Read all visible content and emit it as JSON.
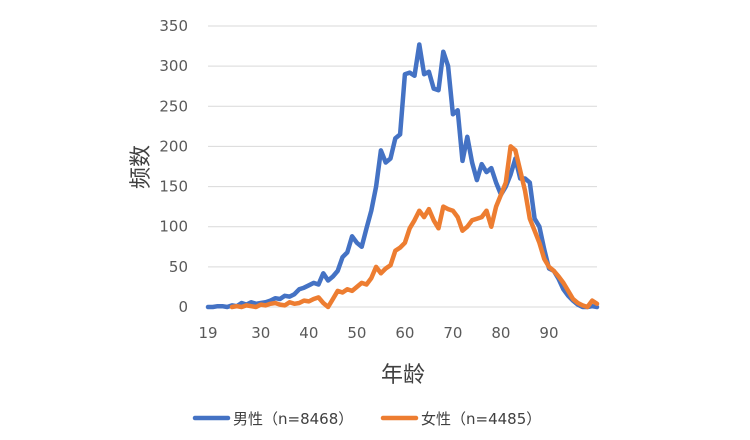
{
  "chart_data": {
    "type": "line",
    "title": "",
    "xlabel": "年龄",
    "ylabel": "频数",
    "xlim": [
      19,
      100
    ],
    "ylim": [
      0,
      350
    ],
    "x_ticks": [
      "19",
      "30",
      "40",
      "50",
      "60",
      "70",
      "80",
      "90"
    ],
    "y_ticks": [
      "0",
      "50",
      "100",
      "150",
      "200",
      "250",
      "300",
      "350"
    ],
    "grid": "horizontal",
    "legend_position": "bottom",
    "series": [
      {
        "name": "男性（n=8468）",
        "color": "#4472c4",
        "points": [
          [
            19,
            0
          ],
          [
            20,
            0
          ],
          [
            21,
            1
          ],
          [
            22,
            1
          ],
          [
            23,
            0
          ],
          [
            24,
            2
          ],
          [
            25,
            1
          ],
          [
            26,
            5
          ],
          [
            27,
            3
          ],
          [
            28,
            6
          ],
          [
            29,
            4
          ],
          [
            30,
            5
          ],
          [
            31,
            6
          ],
          [
            32,
            8
          ],
          [
            33,
            11
          ],
          [
            34,
            10
          ],
          [
            35,
            14
          ],
          [
            36,
            13
          ],
          [
            37,
            16
          ],
          [
            38,
            22
          ],
          [
            39,
            24
          ],
          [
            40,
            27
          ],
          [
            41,
            30
          ],
          [
            42,
            28
          ],
          [
            43,
            42
          ],
          [
            44,
            33
          ],
          [
            45,
            38
          ],
          [
            46,
            45
          ],
          [
            47,
            62
          ],
          [
            48,
            68
          ],
          [
            49,
            88
          ],
          [
            50,
            80
          ],
          [
            51,
            75
          ],
          [
            52,
            98
          ],
          [
            53,
            120
          ],
          [
            54,
            150
          ],
          [
            55,
            195
          ],
          [
            56,
            180
          ],
          [
            57,
            185
          ],
          [
            58,
            210
          ],
          [
            59,
            215
          ],
          [
            60,
            290
          ],
          [
            61,
            292
          ],
          [
            62,
            288
          ],
          [
            63,
            327
          ],
          [
            64,
            290
          ],
          [
            65,
            293
          ],
          [
            66,
            272
          ],
          [
            67,
            270
          ],
          [
            68,
            318
          ],
          [
            69,
            300
          ],
          [
            70,
            240
          ],
          [
            71,
            245
          ],
          [
            72,
            182
          ],
          [
            73,
            212
          ],
          [
            74,
            180
          ],
          [
            75,
            158
          ],
          [
            76,
            178
          ],
          [
            77,
            168
          ],
          [
            78,
            173
          ],
          [
            79,
            155
          ],
          [
            80,
            140
          ],
          [
            81,
            150
          ],
          [
            82,
            165
          ],
          [
            83,
            185
          ],
          [
            84,
            160
          ],
          [
            85,
            160
          ],
          [
            86,
            155
          ],
          [
            87,
            110
          ],
          [
            88,
            100
          ],
          [
            89,
            72
          ],
          [
            90,
            48
          ],
          [
            91,
            45
          ],
          [
            92,
            35
          ],
          [
            93,
            22
          ],
          [
            94,
            14
          ],
          [
            95,
            8
          ],
          [
            96,
            3
          ],
          [
            97,
            0
          ],
          [
            98,
            0
          ],
          [
            99,
            1
          ],
          [
            100,
            0
          ]
        ]
      },
      {
        "name": "女性（n=4485）",
        "color": "#ed7d31",
        "points": [
          [
            24,
            0
          ],
          [
            25,
            1
          ],
          [
            26,
            0
          ],
          [
            27,
            2
          ],
          [
            28,
            1
          ],
          [
            29,
            0
          ],
          [
            30,
            3
          ],
          [
            31,
            2
          ],
          [
            32,
            4
          ],
          [
            33,
            5
          ],
          [
            34,
            3
          ],
          [
            35,
            2
          ],
          [
            36,
            6
          ],
          [
            37,
            4
          ],
          [
            38,
            5
          ],
          [
            39,
            8
          ],
          [
            40,
            7
          ],
          [
            41,
            10
          ],
          [
            42,
            12
          ],
          [
            43,
            5
          ],
          [
            44,
            0
          ],
          [
            45,
            10
          ],
          [
            46,
            20
          ],
          [
            47,
            18
          ],
          [
            48,
            22
          ],
          [
            49,
            20
          ],
          [
            50,
            25
          ],
          [
            51,
            30
          ],
          [
            52,
            28
          ],
          [
            53,
            36
          ],
          [
            54,
            50
          ],
          [
            55,
            42
          ],
          [
            56,
            48
          ],
          [
            57,
            52
          ],
          [
            58,
            70
          ],
          [
            59,
            74
          ],
          [
            60,
            80
          ],
          [
            61,
            98
          ],
          [
            62,
            108
          ],
          [
            63,
            120
          ],
          [
            64,
            112
          ],
          [
            65,
            122
          ],
          [
            66,
            108
          ],
          [
            67,
            98
          ],
          [
            68,
            125
          ],
          [
            69,
            122
          ],
          [
            70,
            120
          ],
          [
            71,
            112
          ],
          [
            72,
            95
          ],
          [
            73,
            100
          ],
          [
            74,
            108
          ],
          [
            75,
            110
          ],
          [
            76,
            112
          ],
          [
            77,
            120
          ],
          [
            78,
            100
          ],
          [
            79,
            125
          ],
          [
            80,
            140
          ],
          [
            81,
            155
          ],
          [
            82,
            200
          ],
          [
            83,
            195
          ],
          [
            84,
            170
          ],
          [
            85,
            145
          ],
          [
            86,
            110
          ],
          [
            87,
            95
          ],
          [
            88,
            80
          ],
          [
            89,
            60
          ],
          [
            90,
            50
          ],
          [
            91,
            45
          ],
          [
            92,
            38
          ],
          [
            93,
            30
          ],
          [
            94,
            20
          ],
          [
            95,
            10
          ],
          [
            96,
            5
          ],
          [
            97,
            2
          ],
          [
            98,
            0
          ],
          [
            99,
            8
          ],
          [
            100,
            4
          ]
        ]
      }
    ]
  }
}
